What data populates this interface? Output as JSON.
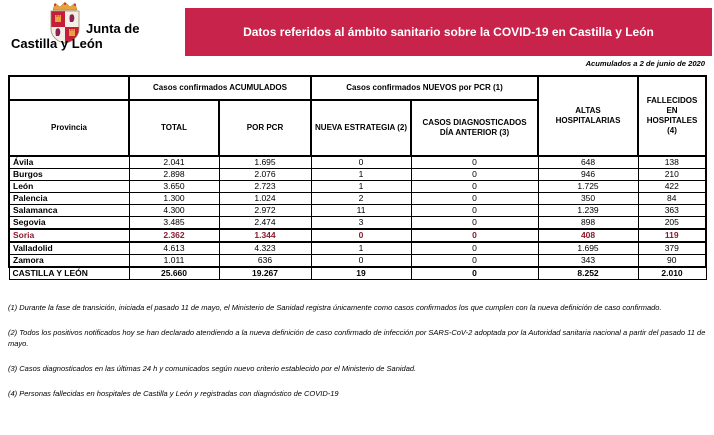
{
  "logo": {
    "line1": "Junta de",
    "line2": "Castilla y León"
  },
  "banner": {
    "title": "Datos referidos al ámbito sanitario sobre la COVID-19 en Castilla y León"
  },
  "subtitle": "Acumulados a 2 de junio de 2020",
  "colors": {
    "banner_bg": "#C8234B",
    "banner_text": "#FFFFFF",
    "highlight_row_text": "#8B1A2B",
    "table_border": "#000000"
  },
  "table": {
    "group_headers": {
      "accumulated": "Casos confirmados ACUMULADOS",
      "new_pcr": "Casos confirmados NUEVOS por PCR (1)"
    },
    "col_headers": {
      "province": "Provincia",
      "total": "TOTAL",
      "por_pcr": "POR PCR",
      "nueva_estrategia": "NUEVA ESTRATEGIA (2)",
      "casos_diagnosticados": "CASOS DIAGNOSTICADOS DÍA ANTERIOR (3)",
      "altas": "ALTAS HOSPITALARIAS",
      "fallecidos": "FALLECIDOS EN HOSPITALES (4)"
    },
    "rows": [
      {
        "province": "Ávila",
        "total": "2.041",
        "por_pcr": "1.695",
        "nueva": "0",
        "diag": "0",
        "altas": "648",
        "fallecidos": "138",
        "highlight": false
      },
      {
        "province": "Burgos",
        "total": "2.898",
        "por_pcr": "2.076",
        "nueva": "1",
        "diag": "0",
        "altas": "946",
        "fallecidos": "210",
        "highlight": false
      },
      {
        "province": "León",
        "total": "3.650",
        "por_pcr": "2.723",
        "nueva": "1",
        "diag": "0",
        "altas": "1.725",
        "fallecidos": "422",
        "highlight": false
      },
      {
        "province": "Palencia",
        "total": "1.300",
        "por_pcr": "1.024",
        "nueva": "2",
        "diag": "0",
        "altas": "350",
        "fallecidos": "84",
        "highlight": false
      },
      {
        "province": "Salamanca",
        "total": "4.300",
        "por_pcr": "2.972",
        "nueva": "11",
        "diag": "0",
        "altas": "1.239",
        "fallecidos": "363",
        "highlight": false
      },
      {
        "province": "Segovia",
        "total": "3.485",
        "por_pcr": "2.474",
        "nueva": "3",
        "diag": "0",
        "altas": "898",
        "fallecidos": "205",
        "highlight": false
      },
      {
        "province": "Soria",
        "total": "2.362",
        "por_pcr": "1.344",
        "nueva": "0",
        "diag": "0",
        "altas": "408",
        "fallecidos": "119",
        "highlight": true
      },
      {
        "province": "Valladolid",
        "total": "4.613",
        "por_pcr": "4.323",
        "nueva": "1",
        "diag": "0",
        "altas": "1.695",
        "fallecidos": "379",
        "highlight": false
      },
      {
        "province": "Zamora",
        "total": "1.011",
        "por_pcr": "636",
        "nueva": "0",
        "diag": "0",
        "altas": "343",
        "fallecidos": "90",
        "highlight": false
      }
    ],
    "total_row": {
      "province": "CASTILLA Y LEÓN",
      "total": "25.660",
      "por_pcr": "19.267",
      "nueva": "19",
      "diag": "0",
      "altas": "8.252",
      "fallecidos": "2.010"
    }
  },
  "footnotes": [
    "(1) Durante la fase de transición, iniciada el pasado 11 de mayo, el Ministerio de Sanidad registra únicamente como casos confirmados los que cumplen con la nueva definición de caso confirmado.",
    "(2) Todos los positivos notificados hoy se han declarado atendiendo a la nueva definición de caso confirmado de infección por SARS-CoV-2 adoptada por la Autoridad sanitaria nacional a partir del pasado 11 de mayo.",
    "(3) Casos diagnosticados en las últimas 24 h y comunicados según nuevo criterio establecido por el Ministerio de Sanidad.",
    "(4) Personas fallecidas en hospitales de Castilla y León y registradas con diagnóstico de COVID-19"
  ]
}
